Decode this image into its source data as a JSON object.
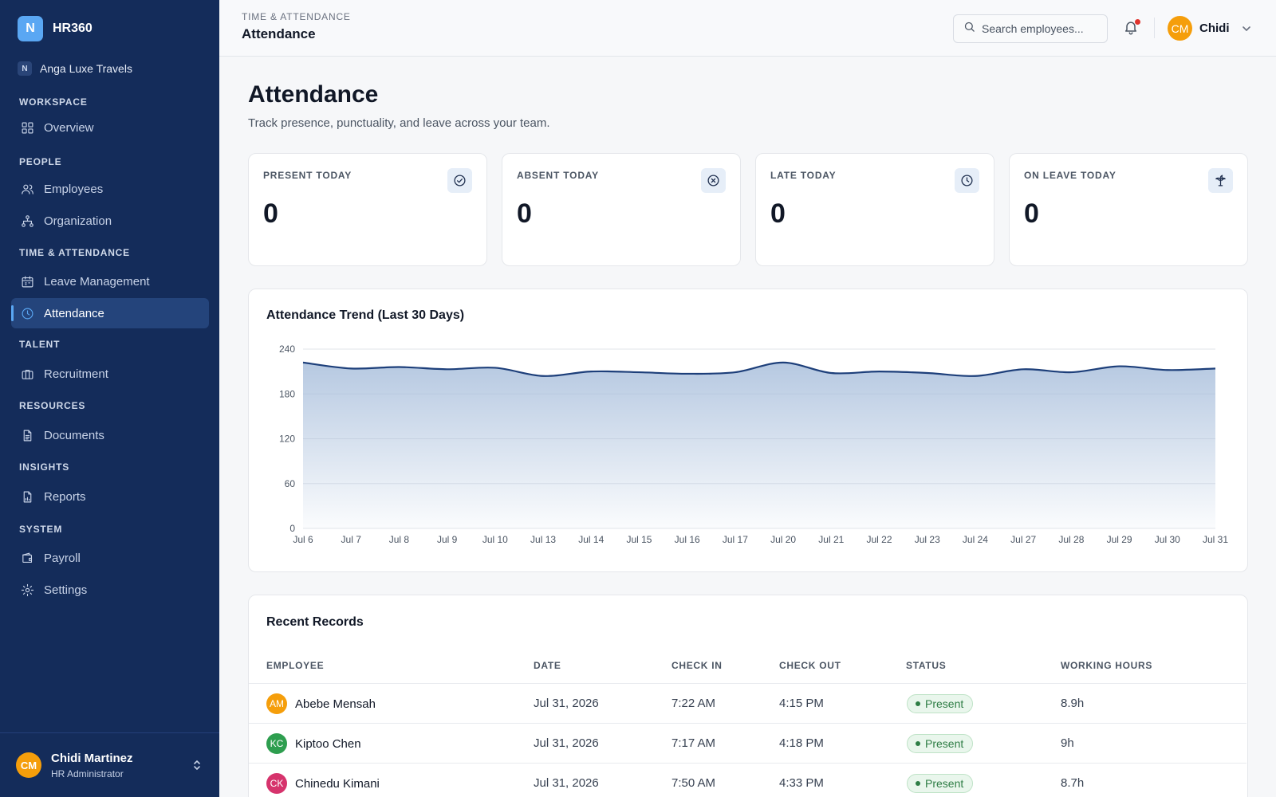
{
  "sidebar": {
    "brand_logo": "N",
    "brand_name": "HR360",
    "org_badge": "N",
    "org_name": "Anga Luxe Travels",
    "sections": {
      "workspace": "WORKSPACE",
      "people": "PEOPLE",
      "time": "TIME & ATTENDANCE",
      "talent": "TALENT",
      "resources": "RESOURCES",
      "insights": "INSIGHTS",
      "system": "SYSTEM"
    },
    "items": {
      "overview": "Overview",
      "employees": "Employees",
      "organization": "Organization",
      "leave": "Leave Management",
      "attendance": "Attendance",
      "recruitment": "Recruitment",
      "documents": "Documents",
      "reports": "Reports",
      "payroll": "Payroll",
      "settings": "Settings"
    },
    "active_item": "attendance",
    "user": {
      "initials": "CM",
      "name": "Chidi Martinez",
      "role": "HR Administrator",
      "avatar_color": "#f59e0b"
    }
  },
  "topbar": {
    "breadcrumb": "TIME & ATTENDANCE",
    "title": "Attendance",
    "search_placeholder": "Search employees...",
    "user_initials": "CM",
    "user_name": "Chidi",
    "has_notification": true
  },
  "page": {
    "title": "Attendance",
    "subtitle": "Track presence, punctuality, and leave across your team."
  },
  "stats": [
    {
      "label": "PRESENT TODAY",
      "value": "0",
      "icon": "check-circle-icon"
    },
    {
      "label": "ABSENT TODAY",
      "value": "0",
      "icon": "x-circle-icon"
    },
    {
      "label": "LATE TODAY",
      "value": "0",
      "icon": "clock-icon"
    },
    {
      "label": "ON LEAVE TODAY",
      "value": "0",
      "icon": "palm-tree-icon"
    }
  ],
  "chart_data": {
    "type": "area",
    "title": "Attendance Trend (Last 30 Days)",
    "categories": [
      "Jul 6",
      "Jul 7",
      "Jul 8",
      "Jul 9",
      "Jul 10",
      "Jul 13",
      "Jul 14",
      "Jul 15",
      "Jul 16",
      "Jul 17",
      "Jul 20",
      "Jul 21",
      "Jul 22",
      "Jul 23",
      "Jul 24",
      "Jul 27",
      "Jul 28",
      "Jul 29",
      "Jul 30",
      "Jul 31"
    ],
    "series": [
      {
        "values": [
          222,
          214,
          216,
          213,
          215,
          204,
          210,
          209,
          207,
          209,
          222,
          208,
          210,
          208,
          204,
          213,
          209,
          217,
          212,
          214
        ]
      }
    ],
    "ylim": [
      0,
      240
    ],
    "yticks": [
      0,
      60,
      120,
      180,
      240
    ],
    "grid": true,
    "line_color": "#1d3f7a",
    "fill_color": "#a9bfdc"
  },
  "records": {
    "title": "Recent Records",
    "columns": [
      "EMPLOYEE",
      "DATE",
      "CHECK IN",
      "CHECK OUT",
      "STATUS",
      "WORKING HOURS"
    ],
    "rows": [
      {
        "initials": "AM",
        "avatar_color": "#f59e0b",
        "name": "Abebe Mensah",
        "date": "Jul 31, 2026",
        "check_in": "7:22 AM",
        "check_out": "4:15 PM",
        "status": "Present",
        "hours": "8.9h"
      },
      {
        "initials": "KC",
        "avatar_color": "#2e9e4f",
        "name": "Kiptoo Chen",
        "date": "Jul 31, 2026",
        "check_in": "7:17 AM",
        "check_out": "4:18 PM",
        "status": "Present",
        "hours": "9h"
      },
      {
        "initials": "CK",
        "avatar_color": "#d6336c",
        "name": "Chinedu Kimani",
        "date": "Jul 31, 2026",
        "check_in": "7:50 AM",
        "check_out": "4:33 PM",
        "status": "Present",
        "hours": "8.7h"
      }
    ]
  }
}
